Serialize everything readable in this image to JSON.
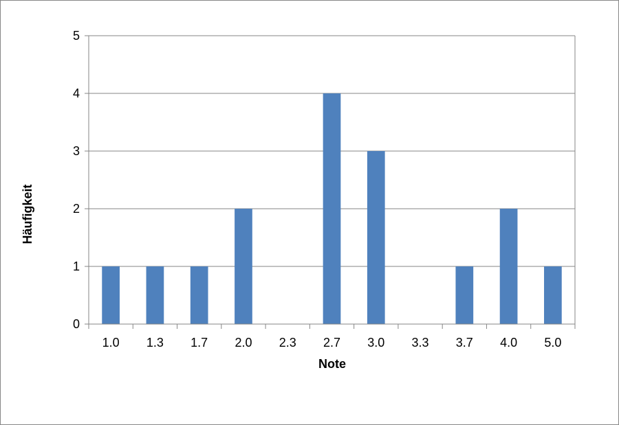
{
  "chart_data": {
    "type": "bar",
    "title": "",
    "xlabel": "Note",
    "ylabel": "Häufigkeit",
    "categories": [
      "1.0",
      "1.3",
      "1.7",
      "2.0",
      "2.3",
      "2.7",
      "3.0",
      "3.3",
      "3.7",
      "4.0",
      "5.0"
    ],
    "values": [
      1,
      1,
      1,
      2,
      0,
      4,
      3,
      0,
      1,
      2,
      1
    ],
    "ylim": [
      0,
      5
    ],
    "yticks": [
      "0",
      "1",
      "2",
      "3",
      "4",
      "5"
    ],
    "grid": true,
    "legend": "none",
    "bar_color": "#4f81bd",
    "grid_color": "#868686"
  }
}
